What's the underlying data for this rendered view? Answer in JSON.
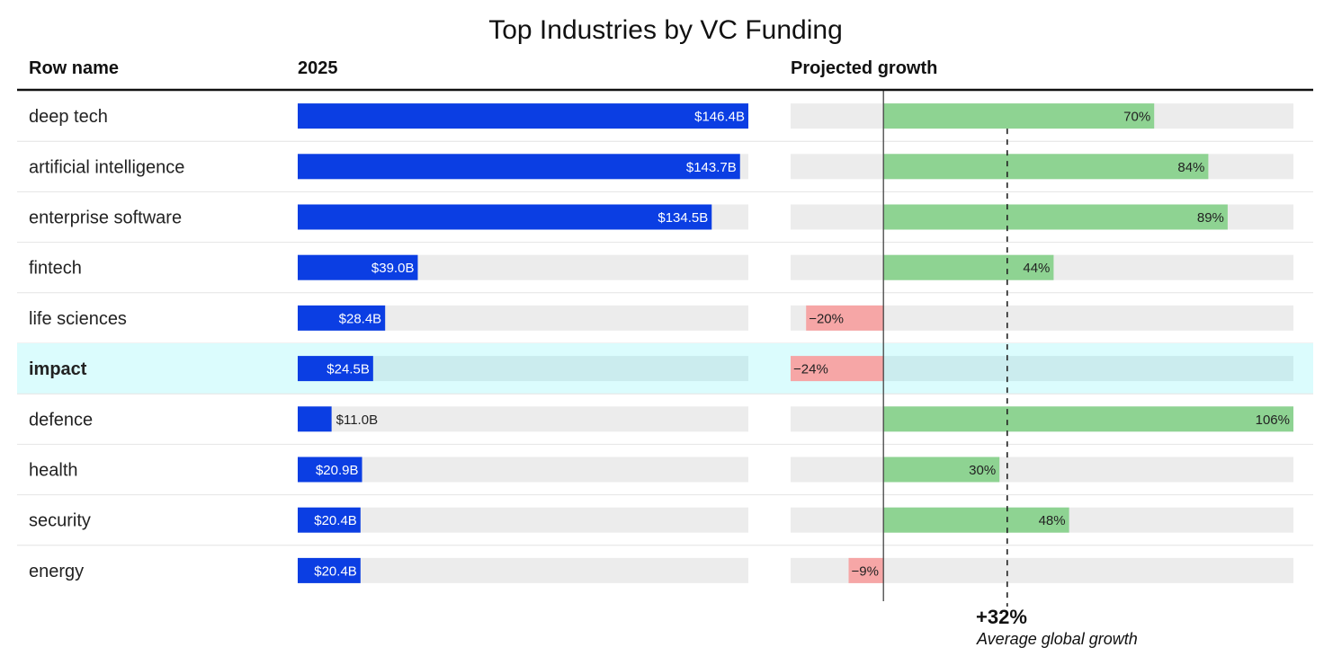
{
  "chart_data": {
    "type": "bar",
    "title": "Top Industries by VC Funding",
    "columns": {
      "row_name": "Row name",
      "funding": "2025",
      "growth": "Projected growth"
    },
    "categories": [
      "deep tech",
      "artificial intelligence",
      "enterprise software",
      "fintech",
      "life sciences",
      "impact",
      "defence",
      "health",
      "security",
      "energy"
    ],
    "highlight": "impact",
    "series": [
      {
        "name": "2025",
        "unit": "$B",
        "values": [
          146.4,
          143.7,
          134.5,
          39.0,
          28.4,
          24.5,
          11.0,
          20.9,
          20.4,
          20.4
        ],
        "labels": [
          "$146.4B",
          "$143.7B",
          "$134.5B",
          "$39.0B",
          "$28.4B",
          "$24.5B",
          "$11.0B",
          "$20.9B",
          "$20.4B",
          "$20.4B"
        ],
        "xlim": [
          0,
          146.4
        ]
      },
      {
        "name": "Projected growth",
        "unit": "%",
        "values": [
          70,
          84,
          89,
          44,
          -20,
          -24,
          106,
          30,
          48,
          -9
        ],
        "labels": [
          "70%",
          "84%",
          "89%",
          "44%",
          "−20%",
          "−24%",
          "106%",
          "30%",
          "48%",
          "−9%"
        ],
        "xlim": [
          -24,
          106
        ]
      }
    ],
    "reference_line": {
      "value": 32,
      "label": "+32%",
      "caption": "Average global growth"
    },
    "colors": {
      "funding_bar": "#0b3ee3",
      "positive_growth": "#8ed392",
      "negative_growth": "#f6a6a6",
      "track": "#ececec",
      "highlight_row": "#dbfcfd",
      "highlight_track": "#cbecee"
    }
  }
}
